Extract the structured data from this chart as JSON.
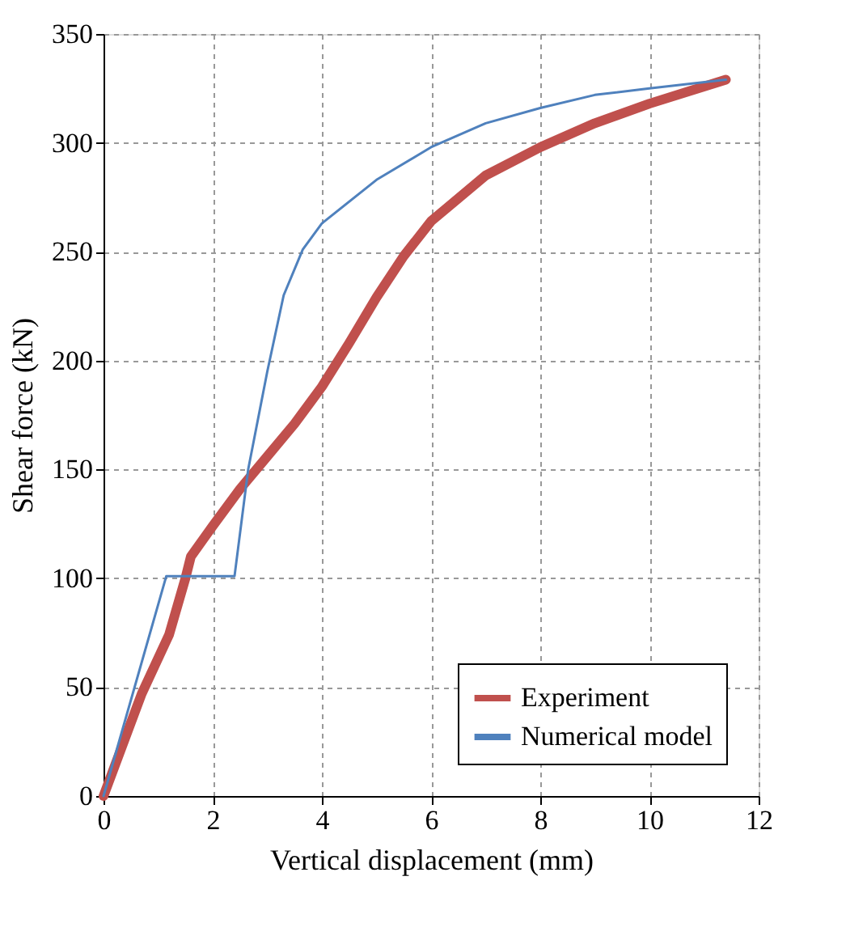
{
  "chart_data": {
    "type": "line",
    "xlabel": "Vertical displacement (mm)",
    "ylabel": "Shear force (kN)",
    "xlim": [
      0,
      12
    ],
    "xticks": [
      0,
      2,
      4,
      6,
      8,
      10,
      12
    ],
    "ylim": [
      0,
      350
    ],
    "yticks": [
      0,
      50,
      100,
      150,
      200,
      250,
      300,
      350
    ],
    "grid": true,
    "legend": "bottom right",
    "marker": "none",
    "line_style": "solid",
    "series": [
      {
        "name": "Experiment",
        "color": "#c0504d",
        "x": [
          0,
          0.7,
          1.2,
          1.5,
          1.6,
          2.0,
          2.5,
          3.0,
          3.5,
          4.0,
          4.5,
          5.0,
          5.5,
          6.0,
          7.0,
          8.0,
          9.0,
          10.0,
          11.4
        ],
        "values": [
          0,
          47,
          74,
          100,
          110,
          124,
          141,
          156,
          171,
          188,
          208,
          229,
          248,
          264,
          285,
          298,
          309,
          318,
          329
        ]
      },
      {
        "name": "Numerical model",
        "color": "#4f81bd",
        "x": [
          0,
          1.15,
          2.4,
          2.65,
          3.0,
          3.3,
          3.65,
          4.0,
          5.0,
          6.0,
          7.0,
          8.0,
          9.0,
          10.0,
          11.4
        ],
        "values": [
          0,
          101,
          101,
          150,
          195,
          230,
          251,
          263,
          283,
          298,
          309,
          316,
          322,
          325,
          329
        ]
      }
    ]
  }
}
